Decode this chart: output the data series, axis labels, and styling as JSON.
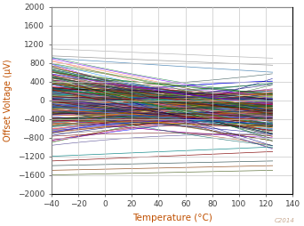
{
  "title": "",
  "xlabel": "Temperature (°C)",
  "ylabel": "Offset Voltage (µV)",
  "xlim": [
    -40,
    140
  ],
  "ylim": [
    -2000,
    2000
  ],
  "xticks": [
    -40,
    -20,
    0,
    20,
    40,
    60,
    80,
    100,
    120,
    140
  ],
  "yticks": [
    -2000,
    -1600,
    -1200,
    -800,
    -400,
    0,
    400,
    800,
    1200,
    1600,
    2000
  ],
  "num_lines": 250,
  "seed": 7,
  "label_color": "#C05000",
  "tick_color": "#404040",
  "grid_color": "#C8C8C8",
  "watermark": "C2014",
  "watermark_color": "#C8A890",
  "line_alpha": 0.9,
  "line_width": 0.4,
  "colors": [
    "#FF0000",
    "#0000FF",
    "#008000",
    "#000000",
    "#FF6600",
    "#800080",
    "#008080",
    "#800000",
    "#000080",
    "#808000",
    "#804000",
    "#408000",
    "#004080",
    "#804080",
    "#408080",
    "#C00000",
    "#0000C0",
    "#006000",
    "#600000",
    "#000060",
    "#606000",
    "#C06000",
    "#006060",
    "#606060",
    "#400000",
    "#004000",
    "#000040",
    "#404000",
    "#400040",
    "#004040",
    "#FF4000",
    "#8000FF",
    "#0080FF",
    "#A0522D",
    "#2E8B57",
    "#4682B4",
    "#D2691E",
    "#6B8E23",
    "#708090",
    "#B8860B",
    "#556B2F",
    "#8B4513",
    "#2F4F4F",
    "#696969",
    "#DC143C",
    "#00CED1",
    "#1E90FF",
    "#32CD32",
    "#7B68EE",
    "#3CB371",
    "#BA55D3",
    "#20B2AA",
    "#CD853F",
    "#C71585",
    "#191970",
    "#B22222",
    "#4169E1",
    "#228B22",
    "#DAA520",
    "#9932CC",
    "#8B0000",
    "#8B008B",
    "#BDB76B",
    "#483D8B",
    "#008B8B",
    "#CC6600",
    "#996633",
    "#FF7F50",
    "#6495ED",
    "#D2691E",
    "#00008B",
    "#9400D3",
    "#FF8C00",
    "#48D1CC",
    "#6A5ACD",
    "#D2B48C",
    "#A52A2A",
    "#5F9EA0",
    "#4B0082",
    "#2F4F4F",
    "#006400",
    "#404040",
    "#808080",
    "#C0C0C0",
    "#800040",
    "#408040",
    "#004040",
    "#840000",
    "#008400",
    "#000084",
    "#840084",
    "#008484",
    "#848400",
    "#FF8080",
    "#8080FF",
    "#80FF80",
    "#804040",
    "#408080",
    "#804080",
    "#880000",
    "#008800",
    "#000088",
    "#660000",
    "#006600",
    "#000066",
    "#664400",
    "#446600",
    "#004466"
  ]
}
